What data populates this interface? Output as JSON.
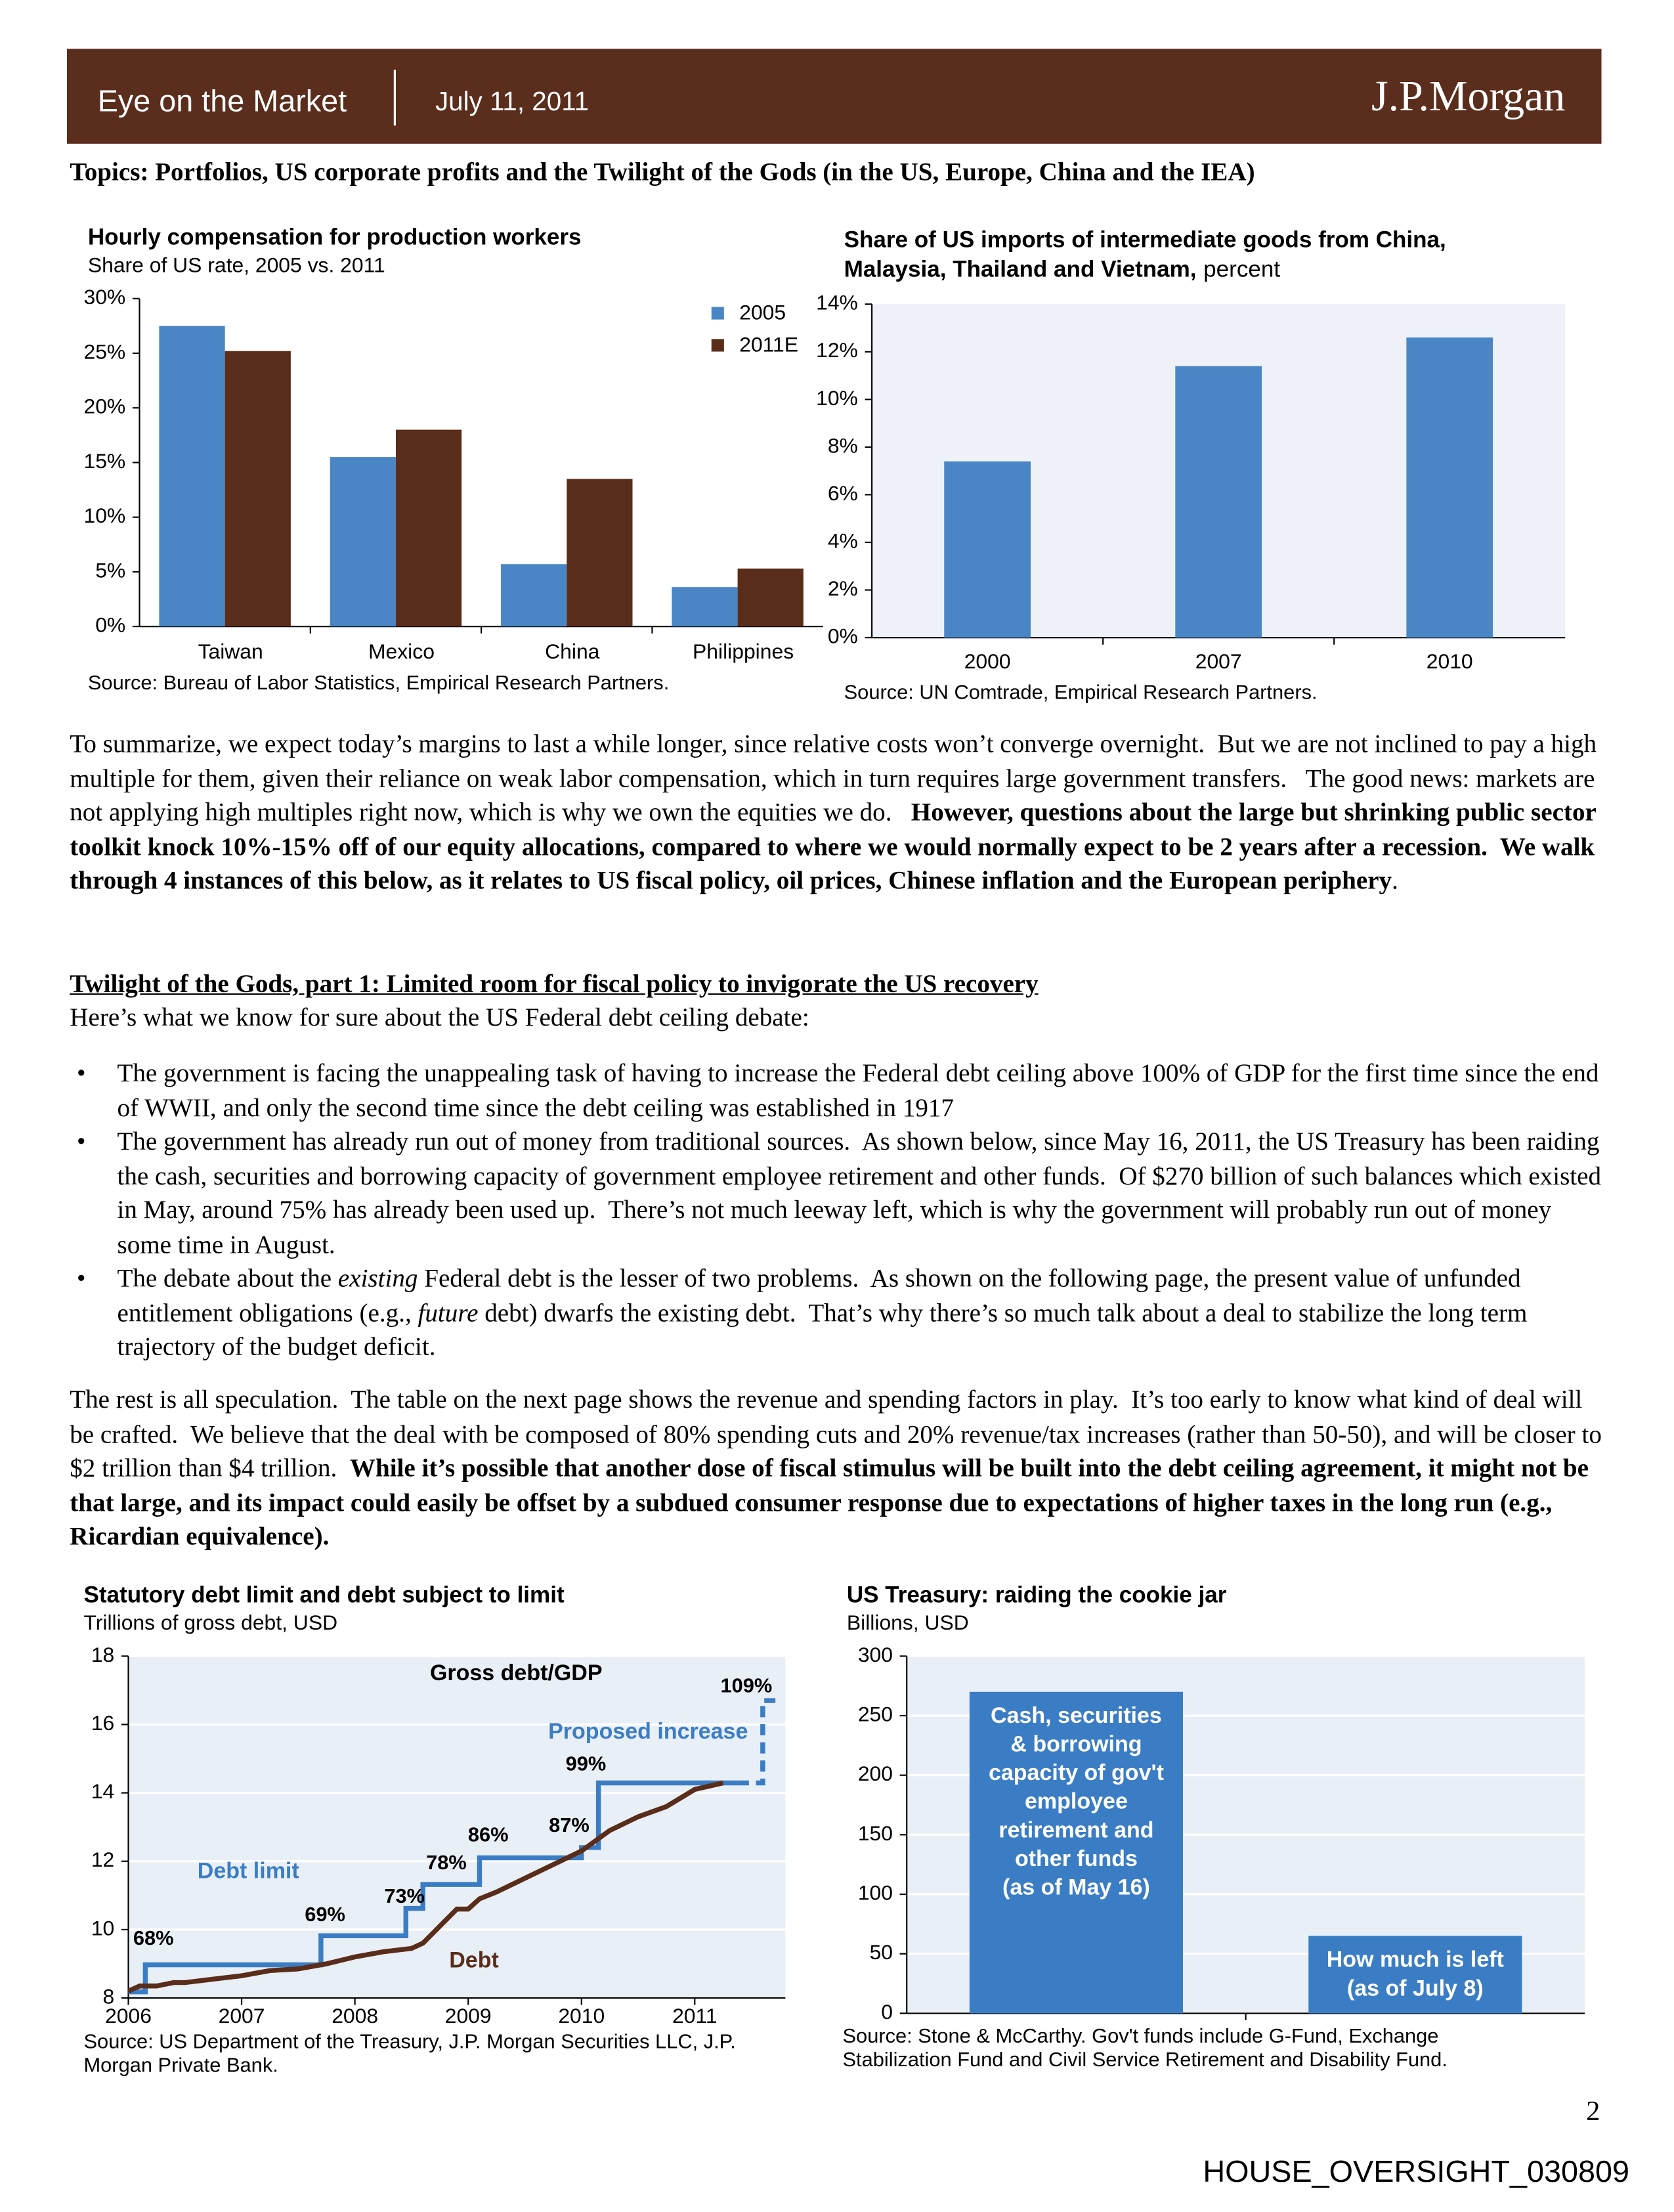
{
  "header": {
    "title": "Eye on the Market",
    "date": "July 11, 2011",
    "brand": "J.P.Morgan"
  },
  "topics": "Topics: Portfolios, US corporate profits and the Twilight of the Gods (in the US, Europe, China and the IEA)",
  "chart_data": [
    {
      "type": "bar",
      "title": "Hourly compensation  for production workers",
      "subtitle": "Share of US rate, 2005 vs. 2011",
      "categories": [
        "Taiwan",
        "Mexico",
        "China",
        "Philippines"
      ],
      "series": [
        {
          "name": "2005",
          "color": "#4a86c5",
          "values": [
            27.5,
            15.5,
            5.7,
            3.6
          ]
        },
        {
          "name": "2011E",
          "color": "#5a2d1a",
          "values": [
            25.2,
            18,
            13.5,
            5.3
          ]
        }
      ],
      "ylim": [
        0,
        30
      ],
      "yticks": [
        {
          "value": 0,
          "label": "0%"
        },
        {
          "value": 5,
          "label": "5%"
        },
        {
          "value": 10,
          "label": "10%"
        },
        {
          "value": 15,
          "label": "15%"
        },
        {
          "value": 20,
          "label": "20%"
        },
        {
          "value": 25,
          "label": "25%"
        },
        {
          "value": 30,
          "label": "30%"
        }
      ],
      "legend": "top-right",
      "grid": false,
      "source": "Source: Bureau of Labor Statistics, Empirical Research Partners."
    },
    {
      "type": "bar",
      "title": [
        "Share of US imports of intermediate goods from China,",
        "Malaysia, Thailand and Vietnam,"
      ],
      "subtitle": "percent",
      "categories": [
        "2000",
        "2007",
        "2010"
      ],
      "values": [
        7.4,
        11.4,
        12.6
      ],
      "color": "#4a86c5",
      "ylim": [
        0,
        14
      ],
      "yticks": [
        {
          "value": 0,
          "label": "0%"
        },
        {
          "value": 2,
          "label": "2%"
        },
        {
          "value": 4,
          "label": "4%"
        },
        {
          "value": 6,
          "label": "6%"
        },
        {
          "value": 8,
          "label": "8%"
        },
        {
          "value": 10,
          "label": "10%"
        },
        {
          "value": 12,
          "label": "12%"
        },
        {
          "value": 14,
          "label": "14%"
        }
      ],
      "grid": false,
      "source": "Source: UN Comtrade, Empirical Research Partners."
    },
    {
      "type": "line",
      "title": "Statutory debt limit and debt subject to limit",
      "subtitle": "Trillions of gross debt, USD",
      "series": [
        {
          "name": "Debt limit",
          "color": "#3b7dc4",
          "style": "solid",
          "x": [
            2006,
            2006.15,
            2006.15,
            2007.7,
            2007.7,
            2008.45,
            2008.45,
            2008.6,
            2008.6,
            2009.1,
            2009.1,
            2010.0,
            2010.0,
            2010.15,
            2010.15,
            2011.38
          ],
          "values": [
            8.18,
            8.18,
            8.97,
            8.97,
            9.82,
            9.82,
            10.62,
            10.62,
            11.32,
            11.32,
            12.1,
            12.1,
            12.4,
            12.4,
            14.29,
            14.29
          ]
        },
        {
          "name": "Proposed increase",
          "color": "#3b7dc4",
          "style": "dashed",
          "x": [
            2011.38,
            2011.6,
            2011.6,
            2011.75
          ],
          "values": [
            14.29,
            14.29,
            16.7,
            16.7
          ]
        },
        {
          "name": "Debt",
          "color": "#5a2d1a",
          "style": "solid",
          "x": [
            2006,
            2006.1,
            2006.25,
            2006.4,
            2006.5,
            2006.75,
            2007,
            2007.25,
            2007.5,
            2007.75,
            2008,
            2008.25,
            2008.5,
            2008.6,
            2008.75,
            2008.9,
            2009,
            2009.1,
            2009.25,
            2009.5,
            2009.75,
            2010,
            2010.25,
            2010.5,
            2010.75,
            2011,
            2011.25
          ],
          "values": [
            8.2,
            8.35,
            8.35,
            8.45,
            8.45,
            8.55,
            8.65,
            8.8,
            8.85,
            9.0,
            9.2,
            9.35,
            9.45,
            9.6,
            10.1,
            10.6,
            10.6,
            10.9,
            11.1,
            11.5,
            11.9,
            12.3,
            12.9,
            13.3,
            13.6,
            14.1,
            14.29
          ]
        }
      ],
      "annotations": [
        "Gross debt/GDP",
        "109%",
        "99%",
        "87%",
        "86%",
        "78%",
        "73%",
        "69%",
        "68%"
      ],
      "xlim": [
        2006,
        2011.8
      ],
      "xticks": [
        2006,
        2007,
        2008,
        2009,
        2010,
        2011
      ],
      "ylim": [
        8,
        18
      ],
      "yticks": [
        8,
        10,
        12,
        14,
        16,
        18
      ],
      "grid": true,
      "source": "Source: US Department of the Treasury, J.P. Morgan Securities LLC, J.P. Morgan Private Bank."
    },
    {
      "type": "bar",
      "title": "US Treasury:  raiding the cookie jar",
      "subtitle": "Billions, USD",
      "categories": [
        [
          "Cash, securities",
          "& borrowing",
          "capacity of gov't",
          "employee",
          "retirement and",
          "other funds",
          "(as of May 16)"
        ],
        [
          "How much is left",
          "(as of July 8)"
        ]
      ],
      "values": [
        270,
        65
      ],
      "color": "#3b7dc4",
      "ylim": [
        0,
        300
      ],
      "yticks": [
        0,
        50,
        100,
        150,
        200,
        250,
        300
      ],
      "grid": true,
      "source": "Source: Stone & McCarthy.  Gov't funds include G-Fund, Exchange Stabilization Fund and Civil Service Retirement and Disability Fund."
    }
  ],
  "body": {
    "paragraph_1": [
      {
        "text": "To summarize, we expect today’s margins to last a while longer, since relative costs won’t converge overnight.  But we are not inclined to pay a high multiple for them, given their reliance on weak labor compensation, which in turn requires large government transfers.   The good news: markets are not applying high multiples right now, which is why we own the equities we do.   "
      },
      {
        "text": "However, questions about the large but shrinking public sector toolkit knock 10%-15% off of our equity allocations, compared to where we would normally expect to be 2 years after a recession.  We walk through 4 instances of this below, as it relates to US fiscal policy, oil prices, Chinese inflation and the European periphery",
        "style": "bold"
      },
      {
        "text": "."
      }
    ],
    "heading": "Twilight of the Gods, part 1: Limited room for fiscal policy to invigorate the US recovery",
    "intro": "Here’s what we know for sure about the US Federal debt ceiling debate:",
    "bullets": [
      [
        {
          "text": "The government is facing the unappealing task of having to increase the Federal debt ceiling above 100% of GDP for the first time since the end of WWII, and only the second time since the debt ceiling was established in 1917"
        }
      ],
      [
        {
          "text": "The government has already run out of money from traditional sources.  As shown below, since May 16, 2011, the US Treasury has been raiding the cash, securities and borrowing capacity of government employee retirement and other funds.  Of $270 billion of such balances which existed in May, around 75% has already been used up.  There’s not much leeway left, which is why the government will probably run out of money some time in August."
        }
      ],
      [
        {
          "text": "The debate about the "
        },
        {
          "text": "existing",
          "style": "italic"
        },
        {
          "text": " Federal debt is the lesser of two problems.  As shown on the following page, the present value of unfunded entitlement obligations (e.g., "
        },
        {
          "text": "future",
          "style": "italic"
        },
        {
          "text": " debt) dwarfs the existing debt.  That’s why there’s so much talk about a deal to stabilize the long term trajectory of the budget deficit."
        }
      ]
    ],
    "paragraph_2": [
      {
        "text": "The rest is all speculation.  The table on the next page shows the revenue and spending factors in play.  It’s too early to know what kind of deal will be crafted.  We believe that the deal with be composed of 80% spending cuts and 20% revenue/tax increases (rather than 50-50), and will be closer to $2 trillion than $4 trillion.  "
      },
      {
        "text": "While it’s possible that another dose of fiscal stimulus will be built into the debt ceiling agreement, it might not be that large, and its impact could easily be offset by a subdued consumer response due to expectations of higher taxes in the long run (e.g., Ricardian equivalence).",
        "style": "bold"
      }
    ]
  },
  "footer": {
    "page": "2",
    "doc_id": "HOUSE_OVERSIGHT_030809"
  }
}
